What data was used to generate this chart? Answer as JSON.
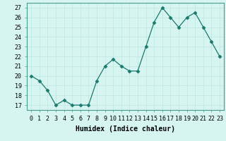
{
  "x": [
    0,
    1,
    2,
    3,
    4,
    5,
    6,
    7,
    8,
    9,
    10,
    11,
    12,
    13,
    14,
    15,
    16,
    17,
    18,
    19,
    20,
    21,
    22,
    23
  ],
  "y": [
    20,
    19.5,
    18.5,
    17,
    17.5,
    17,
    17,
    17,
    19.5,
    21,
    21.7,
    21,
    20.5,
    20.5,
    23,
    25.5,
    27,
    26,
    25,
    26,
    26.5,
    25,
    23.5,
    22
  ],
  "line_color": "#1a7a6e",
  "marker": "D",
  "marker_size": 2.5,
  "bg_color": "#d6f5f0",
  "grid_color": "#c0e8e4",
  "xlabel": "Humidex (Indice chaleur)",
  "xlim": [
    -0.5,
    23.5
  ],
  "ylim": [
    16.5,
    27.5
  ],
  "yticks": [
    17,
    18,
    19,
    20,
    21,
    22,
    23,
    24,
    25,
    26,
    27
  ],
  "xticks": [
    0,
    1,
    2,
    3,
    4,
    5,
    6,
    7,
    8,
    9,
    10,
    11,
    12,
    13,
    14,
    15,
    16,
    17,
    18,
    19,
    20,
    21,
    22,
    23
  ],
  "xlabel_fontsize": 7,
  "tick_fontsize": 6
}
